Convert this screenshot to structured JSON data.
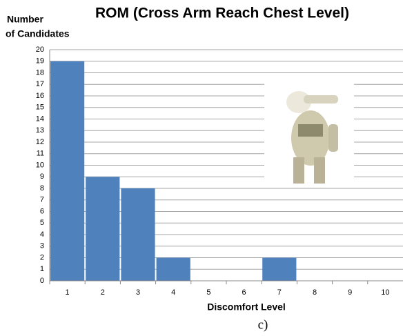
{
  "chart_data": {
    "type": "bar",
    "title": "ROM (Cross Arm Reach Chest Level)",
    "y_label": [
      "Number",
      "of Candidates"
    ],
    "x_label": "Discomfort Level",
    "caption": "c)",
    "categories": [
      "1",
      "2",
      "3",
      "4",
      "5",
      "6",
      "7",
      "8",
      "9",
      "10"
    ],
    "values": [
      19,
      9,
      8,
      2,
      0,
      0,
      2,
      0,
      0,
      0
    ],
    "color": "#4f81bd",
    "ylim": [
      0,
      20
    ],
    "yticks": [
      0,
      1,
      2,
      3,
      4,
      5,
      6,
      7,
      8,
      9,
      10,
      11,
      12,
      13,
      14,
      15,
      16,
      17,
      18,
      19,
      20
    ],
    "grid": true
  }
}
